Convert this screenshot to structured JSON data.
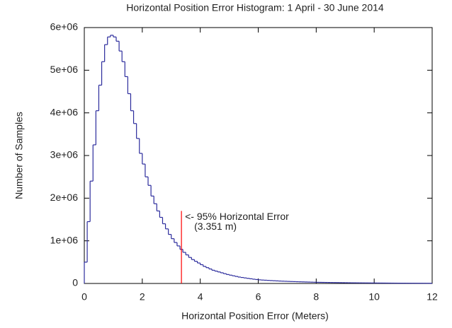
{
  "chart_data": {
    "type": "histogram",
    "title": "Horizontal Position Error Histogram: 1 April - 30 June 2014",
    "x_label": "Horizontal Position Error (Meters)",
    "y_label": "Number of Samples",
    "color": "#2b2b9c",
    "bins": [
      0,
      0.1,
      0.2,
      0.3,
      0.4,
      0.5,
      0.6,
      0.7,
      0.8,
      0.9,
      1,
      1.1,
      1.2,
      1.3,
      1.4,
      1.5,
      1.6,
      1.7,
      1.8,
      1.9,
      2,
      2.1,
      2.2,
      2.3,
      2.4,
      2.5,
      2.6,
      2.7,
      2.8,
      2.9,
      3,
      3.1,
      3.2,
      3.3,
      3.4,
      3.5,
      3.6,
      3.7,
      3.8,
      3.9,
      4,
      4.1,
      4.2,
      4.3,
      4.4,
      4.5,
      4.6,
      4.7,
      4.8,
      4.9,
      5,
      5.1,
      5.2,
      5.3,
      5.4,
      5.5,
      5.6,
      5.7,
      5.8,
      5.9,
      6,
      6.1,
      6.2,
      6.3,
      6.4,
      6.5,
      6.6,
      6.7,
      6.8,
      6.9,
      7,
      7.1,
      7.2,
      7.3,
      7.4,
      7.5,
      7.6,
      7.7,
      7.8,
      7.9,
      8,
      8.1,
      8.2,
      8.3,
      8.4,
      8.5,
      8.6,
      8.7,
      8.8,
      8.9,
      9,
      9.1,
      9.2,
      9.3,
      9.4,
      9.5,
      9.6,
      9.7,
      9.8,
      9.9,
      10,
      10.1,
      10.2,
      10.3,
      10.4,
      10.5,
      10.6,
      10.7,
      10.8,
      10.9,
      11,
      11.1,
      11.2,
      11.3,
      11.4,
      11.5,
      11.6,
      11.7,
      11.8,
      11.9,
      12
    ],
    "values": [
      500000,
      1450000,
      2400000,
      3250000,
      4050000,
      4650000,
      5200000,
      5600000,
      5780000,
      5820000,
      5780000,
      5680000,
      5450000,
      5200000,
      4850000,
      4450000,
      4050000,
      3750000,
      3400000,
      3050000,
      2800000,
      2500000,
      2300000,
      2050000,
      1870000,
      1700000,
      1550000,
      1400000,
      1280000,
      1150000,
      1050000,
      960000,
      880000,
      800000,
      730000,
      670000,
      610000,
      560000,
      520000,
      480000,
      440000,
      400000,
      370000,
      340000,
      310000,
      290000,
      270000,
      250000,
      230000,
      210000,
      195000,
      180000,
      165000,
      150000,
      140000,
      130000,
      120000,
      110000,
      100000,
      92000,
      85000,
      80000,
      76000,
      72000,
      68000,
      64000,
      60000,
      57000,
      54000,
      51000,
      48000,
      45000,
      43000,
      41000,
      39000,
      37000,
      35000,
      33000,
      31000,
      29000,
      27000,
      26000,
      25000,
      24000,
      23000,
      22000,
      21000,
      20000,
      19000,
      18000,
      17000,
      16000,
      15000,
      14500,
      14000,
      13500,
      13000,
      12500,
      12000,
      11500,
      11000,
      10500,
      10000,
      9500,
      9000,
      8500,
      8000,
      7500,
      7000,
      6800,
      6600,
      6400,
      6200,
      6000,
      5800,
      5600,
      5400,
      5200,
      5000,
      4800
    ],
    "xlim": [
      0,
      12
    ],
    "xticks": [
      0,
      2,
      4,
      6,
      8,
      10,
      12
    ],
    "ylim": [
      0,
      6000000
    ],
    "yticks": [
      0,
      {
        "value": 1000000,
        "label": "1e+06"
      },
      {
        "value": 2000000,
        "label": "2e+06"
      },
      {
        "value": 3000000,
        "label": "3e+06"
      },
      {
        "value": 4000000,
        "label": "4e+06"
      },
      {
        "value": 5000000,
        "label": "5e+06"
      },
      {
        "value": 6000000,
        "label": "6e+06"
      }
    ],
    "grid": false,
    "marker": {
      "x": 3.351,
      "height": 1700000,
      "color": "#ff0000",
      "label": "<- 95% Horizontal Error",
      "sublabel": "(3.351 m)"
    }
  }
}
